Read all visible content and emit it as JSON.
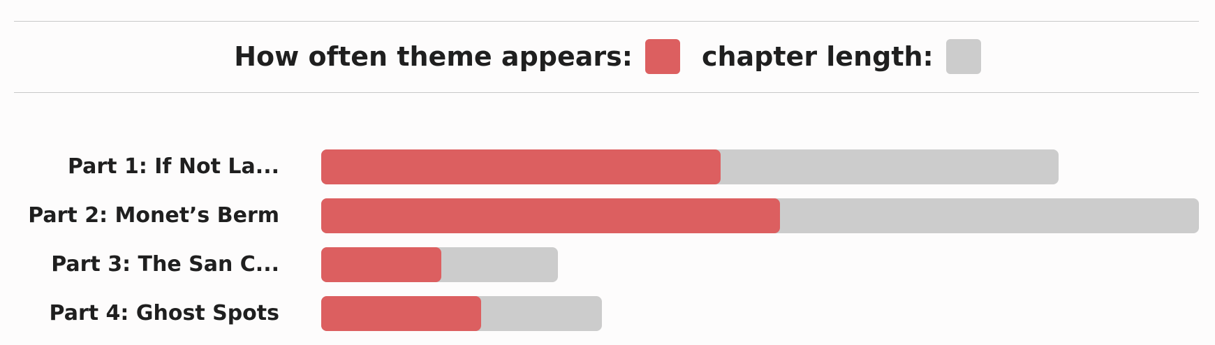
{
  "legend": {
    "theme_label": "How often theme appears:",
    "length_label": "chapter length:"
  },
  "colors": {
    "theme": "#dc5f60",
    "length": "#cccccc"
  },
  "chart_data": {
    "type": "bar",
    "orientation": "horizontal",
    "stacked": "overlay",
    "categories": [
      "Part 1: If Not La...",
      "Part 2: Monet’s Berm",
      "Part 3: The San C...",
      "Part 4: Ghost Spots"
    ],
    "series": [
      {
        "name": "chapter length:",
        "values": [
          84,
          100,
          27,
          32
        ]
      },
      {
        "name": "How often theme appears:",
        "values": [
          45.5,
          52.3,
          13.7,
          18.2
        ]
      }
    ],
    "xlim": [
      0,
      100
    ],
    "grid": false,
    "legend_position": "top"
  }
}
